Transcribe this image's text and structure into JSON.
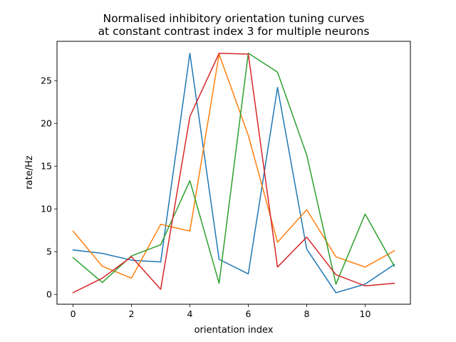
{
  "chart_data": {
    "type": "line",
    "title_lines": [
      "Normalised inhibitory orientation tuning curves",
      "at constant contrast index 3 for multiple neurons"
    ],
    "xlabel": "orientation index",
    "ylabel": "rate/Hz",
    "xlim": [
      -0.55,
      11.55
    ],
    "ylim": [
      -1.15,
      29.6
    ],
    "xticks": [
      0,
      2,
      4,
      6,
      8,
      10
    ],
    "yticks": [
      0,
      5,
      10,
      15,
      20,
      25
    ],
    "grid": false,
    "x": [
      0,
      1,
      2,
      3,
      4,
      5,
      6,
      7,
      8,
      9,
      10,
      11
    ],
    "series": [
      {
        "color": "#1f77b4",
        "values": [
          5.2,
          4.8,
          4.0,
          3.8,
          28.2,
          4.1,
          2.4,
          24.2,
          5.3,
          0.2,
          1.2,
          3.5
        ]
      },
      {
        "color": "#ff7f0e",
        "values": [
          7.4,
          3.3,
          1.9,
          8.2,
          7.4,
          28.1,
          18.6,
          6.1,
          9.9,
          4.4,
          3.2,
          5.1
        ]
      },
      {
        "color": "#2ca02c",
        "values": [
          4.3,
          1.4,
          4.5,
          5.8,
          13.3,
          1.3,
          28.2,
          26.0,
          16.3,
          1.2,
          9.4,
          3.3
        ]
      },
      {
        "color": "#d62728",
        "values": [
          0.2,
          1.9,
          4.4,
          0.6,
          20.8,
          28.2,
          28.1,
          3.2,
          6.7,
          2.3,
          1.0,
          1.3
        ]
      }
    ]
  }
}
